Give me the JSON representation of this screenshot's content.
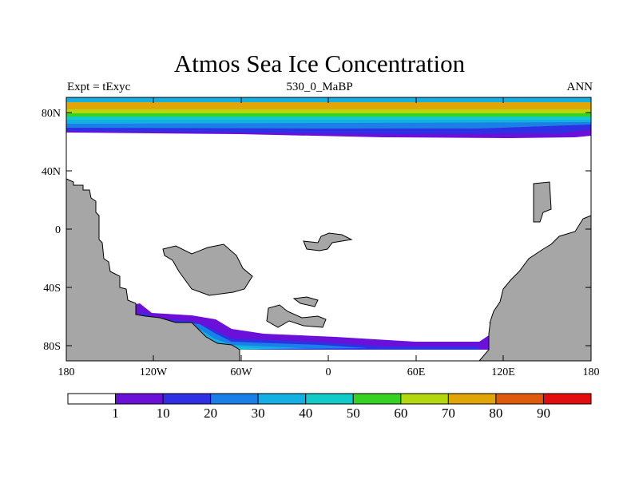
{
  "title": "Atmos Sea Ice Concentration",
  "subtitle": {
    "left": "Expt = tExyc",
    "center": "530_0_MaBP",
    "right": "ANN"
  },
  "axes": {
    "y_ticks": [
      "80N",
      "40N",
      "0",
      "40S",
      "80S"
    ],
    "x_ticks": [
      "180",
      "120W",
      "60W",
      "0",
      "60E",
      "120E",
      "180"
    ]
  },
  "colors": {
    "land": "#a6a6a6",
    "background": "#ffffff"
  },
  "colorbar": {
    "colors": [
      "#ffffff",
      "#6a10d9",
      "#2f30e3",
      "#1a7fe6",
      "#15b0e3",
      "#12cbc8",
      "#36d122",
      "#b4d80f",
      "#e2a508",
      "#e05a0c",
      "#e30d0d"
    ],
    "labels": [
      "1",
      "10",
      "20",
      "30",
      "40",
      "50",
      "60",
      "70",
      "80",
      "90"
    ]
  }
}
